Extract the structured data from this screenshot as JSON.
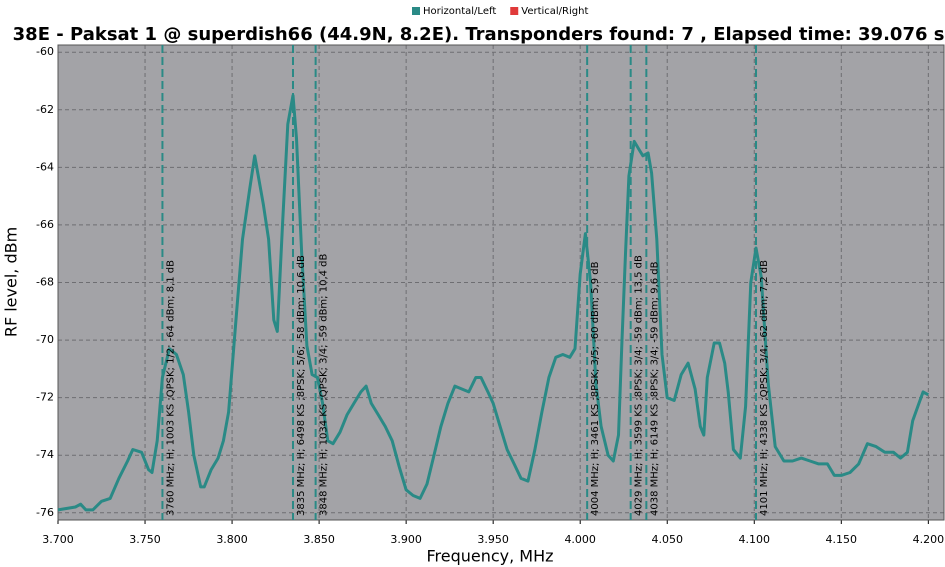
{
  "chart_data": {
    "type": "line",
    "title": "38E - Paksat 1 @ superdish66 (44.9N, 8.2E). Transponders found: 7 , Elapsed time: 39.076 sec",
    "x_label": "Frequency, MHz",
    "y_label": "RF level, dBm",
    "xlim": [
      3700,
      4209
    ],
    "ylim": [
      -76.25,
      -59.75
    ],
    "xticks": [
      {
        "value": 3700,
        "label": "3.700"
      },
      {
        "value": 3750,
        "label": "3.750"
      },
      {
        "value": 3800,
        "label": "3.800"
      },
      {
        "value": 3850,
        "label": "3.850"
      },
      {
        "value": 3900,
        "label": "3.900"
      },
      {
        "value": 3950,
        "label": "3.950"
      },
      {
        "value": 4000,
        "label": "4.000"
      },
      {
        "value": 4050,
        "label": "4.050"
      },
      {
        "value": 4100,
        "label": "4.100"
      },
      {
        "value": 4150,
        "label": "4.150"
      },
      {
        "value": 4200,
        "label": "4.200"
      }
    ],
    "yticks": [
      -76,
      -74,
      -72,
      -70,
      -68,
      -66,
      -64,
      -62,
      -60
    ],
    "grid": true,
    "legend": "top",
    "series": [
      {
        "name": "Horizontal/Left",
        "color": "#2a8a86",
        "x": [
          3700,
          3710,
          3713,
          3716,
          3720,
          3725,
          3730,
          3735,
          3740,
          3743,
          3748,
          3752,
          3754,
          3757,
          3760,
          3764,
          3768,
          3772,
          3775,
          3778,
          3782,
          3784,
          3788,
          3792,
          3795,
          3798,
          3802,
          3806,
          3810,
          3813,
          3818,
          3821,
          3824,
          3826,
          3829,
          3832,
          3835,
          3837,
          3840,
          3843,
          3846,
          3849,
          3852,
          3855,
          3858,
          3862,
          3866,
          3870,
          3874,
          3877,
          3880,
          3884,
          3888,
          3892,
          3896,
          3900,
          3904,
          3908,
          3912,
          3916,
          3920,
          3924,
          3928,
          3932,
          3936,
          3940,
          3943,
          3947,
          3950,
          3954,
          3958,
          3962,
          3966,
          3970,
          3974,
          3978,
          3982,
          3986,
          3990,
          3994,
          3997,
          4000,
          4003,
          4006,
          4009,
          4012,
          4016,
          4019,
          4022,
          4024,
          4026,
          4028,
          4031,
          4034,
          4036,
          4039,
          4041,
          4044,
          4047,
          4050,
          4054,
          4058,
          4062,
          4066,
          4069,
          4071,
          4073,
          4077,
          4080,
          4083,
          4085,
          4088,
          4092,
          4095,
          4098,
          4101,
          4104,
          4108,
          4112,
          4117,
          4122,
          4127,
          4132,
          4137,
          4142,
          4146,
          4150,
          4155,
          4160,
          4165,
          4170,
          4175,
          4180,
          4184,
          4188,
          4191,
          4194,
          4197,
          4200
        ],
        "values": [
          -75.9,
          -75.8,
          -75.7,
          -75.9,
          -75.9,
          -75.6,
          -75.5,
          -74.8,
          -74.2,
          -73.8,
          -73.9,
          -74.5,
          -74.6,
          -73.5,
          -71.3,
          -70.3,
          -70.5,
          -71.2,
          -72.5,
          -74,
          -75.1,
          -75.1,
          -74.5,
          -74.1,
          -73.5,
          -72.5,
          -69.5,
          -66.5,
          -64.8,
          -63.6,
          -65.3,
          -66.5,
          -69.3,
          -69.7,
          -66,
          -62.5,
          -61.5,
          -63,
          -67,
          -70.2,
          -71.2,
          -71.3,
          -72.2,
          -73.5,
          -73.6,
          -73.2,
          -72.6,
          -72.2,
          -71.8,
          -71.6,
          -72.2,
          -72.6,
          -73,
          -73.5,
          -74.4,
          -75.2,
          -75.4,
          -75.5,
          -75,
          -74,
          -73,
          -72.2,
          -71.6,
          -71.7,
          -71.8,
          -71.3,
          -71.3,
          -71.8,
          -72.2,
          -73,
          -73.8,
          -74.3,
          -74.8,
          -74.9,
          -73.8,
          -72.5,
          -71.3,
          -70.6,
          -70.5,
          -70.6,
          -70.3,
          -67.7,
          -66.3,
          -68,
          -71.5,
          -73,
          -74,
          -74.2,
          -73.3,
          -70,
          -67,
          -64.3,
          -63.1,
          -63.4,
          -63.6,
          -63.5,
          -64.2,
          -66.5,
          -70.5,
          -72,
          -72.1,
          -71.2,
          -70.8,
          -71.7,
          -73,
          -73.3,
          -71.3,
          -70.1,
          -70.1,
          -70.8,
          -71.8,
          -73.8,
          -74.1,
          -72.3,
          -68,
          -66.8,
          -67.8,
          -71.5,
          -73.7,
          -74.2,
          -74.2,
          -74.1,
          -74.2,
          -74.3,
          -74.3,
          -74.7,
          -74.7,
          -74.6,
          -74.3,
          -73.6,
          -73.7,
          -73.9,
          -73.9,
          -74.1,
          -73.9,
          -72.8,
          -72.3,
          -71.8,
          -71.9
        ]
      },
      {
        "name": "Vertical/Right",
        "color": "#e03a3a",
        "x": [],
        "values": []
      }
    ],
    "markers": [
      {
        "x": 3760,
        "label": "3760 MHz; H; 1003 KS ;QPSK; 1/2; -64 dBm; 8,1 dB"
      },
      {
        "x": 3835,
        "label": "3835 MHz; H; 6498 KS ;8PSK; 5/6; -58 dBm; 10,6 dB"
      },
      {
        "x": 3848,
        "label": "3848 MHz; H; 1034 KS ;QPSK; 3/4; -59 dBm; 10,4 dB"
      },
      {
        "x": 4004,
        "label": "4004 MHz; H; 3461 KS ;8PSK; 3/5; -60 dBm; 5,9 dB"
      },
      {
        "x": 4029,
        "label": "4029 MHz; H; 3599 KS ;8PSK; 3/4; -59 dBm; 13,5 dB"
      },
      {
        "x": 4038,
        "label": "4038 MHz; H; 6149 KS ;8PSK; 3/4; -59 dBm; 9,6 dB"
      },
      {
        "x": 4101,
        "label": "4101 MHz; H; 4338 KS ;QPSK; 3/4; -62 dBm; 7,2 dB"
      }
    ]
  }
}
